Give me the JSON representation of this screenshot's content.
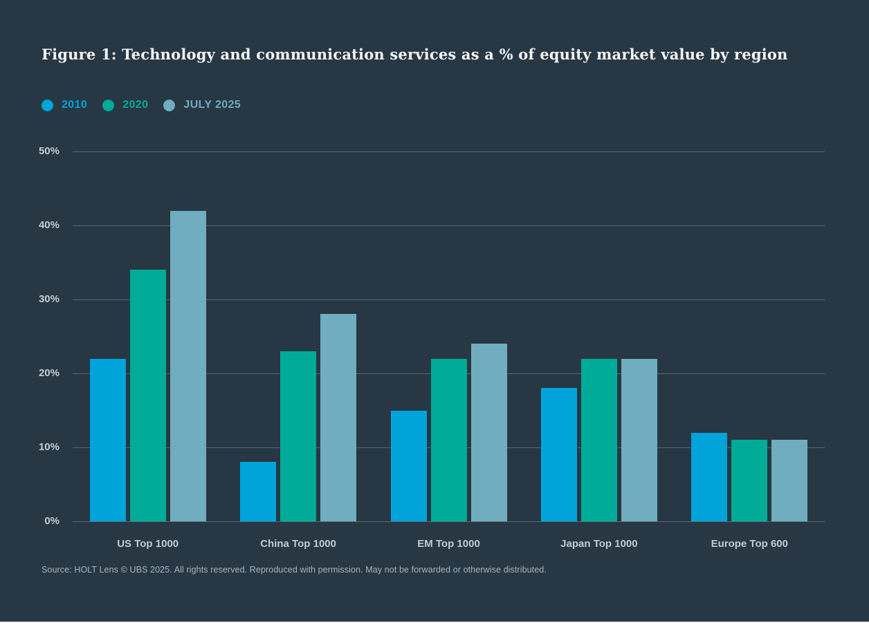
{
  "figure": {
    "title": "Figure 1: Technology and communication services as a % of equity market value by region",
    "source": "Source: HOLT Lens © UBS 2025. All rights reserved. Reproduced with permission. May not be forwarded or otherwise distributed."
  },
  "colors": {
    "background": "#273744",
    "series_2010": "#00A4D9",
    "series_2020": "#00AC97",
    "series_july_2025": "#70ADBE",
    "gridline": "#5C6B76",
    "axis_text": "#C5CDD3",
    "title_text": "#F2F5F6",
    "source_text": "#A9B5BD"
  },
  "legend": {
    "items": [
      {
        "label": "2010",
        "color": "#00A4D9"
      },
      {
        "label": "2020",
        "color": "#00AC97"
      },
      {
        "label": "JULY 2025",
        "color": "#70ADBE"
      }
    ]
  },
  "chart_data": {
    "type": "bar",
    "title": "Figure 1: Technology and communication services as a % of equity market value by region",
    "categories": [
      "US Top 1000",
      "China Top 1000",
      "EM Top 1000",
      "Japan Top 1000",
      "Europe Top 600"
    ],
    "series": [
      {
        "name": "2010",
        "color": "#00A4D9",
        "values": [
          22,
          8,
          15,
          18,
          12
        ]
      },
      {
        "name": "2020",
        "color": "#00AC97",
        "values": [
          34,
          23,
          22,
          22,
          11
        ]
      },
      {
        "name": "JULY 2025",
        "color": "#70ADBE",
        "values": [
          42,
          28,
          24,
          22,
          11
        ]
      }
    ],
    "xlabel": "",
    "ylabel": "",
    "ylim": [
      0,
      50
    ],
    "ytick_step": 10,
    "ytick_labels": [
      "0%",
      "10%",
      "20%",
      "30%",
      "40%",
      "50%"
    ],
    "grid": true,
    "legend_position": "top-left"
  }
}
